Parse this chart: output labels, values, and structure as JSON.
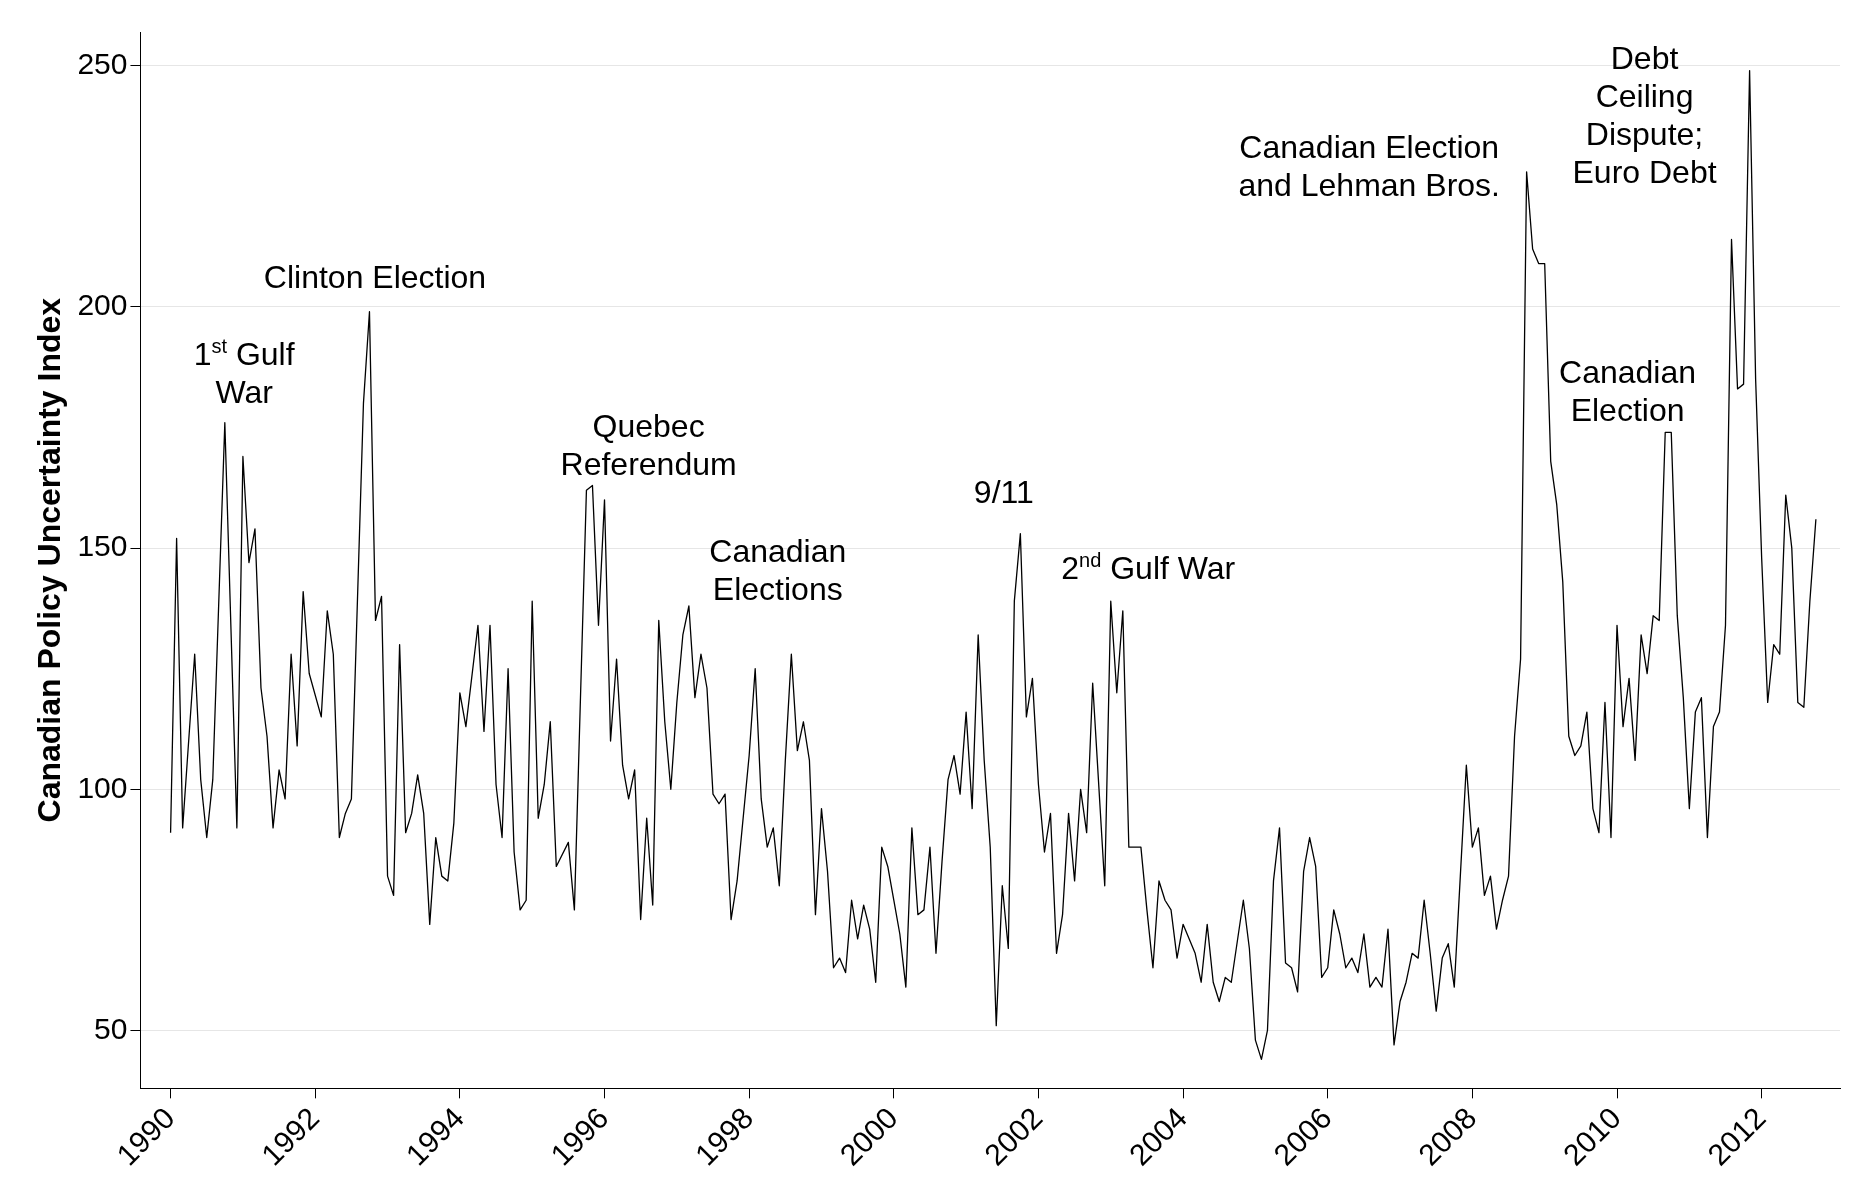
{
  "chart_data": {
    "type": "line",
    "ylabel": "Canadian Policy Uncertainty Index",
    "x": [
      "1990-01",
      "1990-02",
      "1990-03",
      "1990-05",
      "1990-06",
      "1990-07",
      "1990-08",
      "1990-10",
      "1990-12",
      "1991-01",
      "1991-02",
      "1991-03",
      "1991-04",
      "1991-05",
      "1991-06",
      "1991-07",
      "1991-08",
      "1991-09",
      "1991-10",
      "1991-11",
      "1991-12",
      "1992-02",
      "1992-03",
      "1992-04",
      "1992-05",
      "1992-06",
      "1992-07",
      "1992-09",
      "1992-10",
      "1992-11",
      "1992-12",
      "1993-01",
      "1993-02",
      "1993-03",
      "1993-04",
      "1993-05",
      "1993-06",
      "1993-07",
      "1993-08",
      "1993-09",
      "1993-10",
      "1993-11",
      "1993-12",
      "1994-01",
      "1994-02",
      "1994-04",
      "1994-05",
      "1994-06",
      "1994-07",
      "1994-08",
      "1994-09",
      "1994-10",
      "1994-11",
      "1994-12",
      "1995-01",
      "1995-02",
      "1995-03",
      "1995-04",
      "1995-05",
      "1995-07",
      "1995-08",
      "1995-10",
      "1995-11",
      "1995-12",
      "1996-01",
      "1996-02",
      "1996-03",
      "1996-04",
      "1996-05",
      "1996-06",
      "1996-07",
      "1996-08",
      "1996-09",
      "1996-10",
      "1996-11",
      "1996-12",
      "1997-01",
      "1997-02",
      "1997-03",
      "1997-04",
      "1997-05",
      "1997-06",
      "1997-07",
      "1997-08",
      "1997-09",
      "1997-10",
      "1997-11",
      "1998-01",
      "1998-02",
      "1998-03",
      "1998-04",
      "1998-05",
      "1998-06",
      "1998-07",
      "1998-08",
      "1998-09",
      "1998-10",
      "1998-11",
      "1998-12",
      "1999-01",
      "1999-02",
      "1999-03",
      "1999-04",
      "1999-05",
      "1999-06",
      "1999-07",
      "1999-08",
      "1999-09",
      "1999-10",
      "1999-11",
      "1999-12",
      "2000-01",
      "2000-02",
      "2000-03",
      "2000-04",
      "2000-05",
      "2000-06",
      "2000-07",
      "2000-08",
      "2000-09",
      "2000-10",
      "2000-11",
      "2000-12",
      "2001-01",
      "2001-02",
      "2001-03",
      "2001-04",
      "2001-05",
      "2001-06",
      "2001-07",
      "2001-08",
      "2001-09",
      "2001-10",
      "2001-11",
      "2001-12",
      "2002-01",
      "2002-02",
      "2002-03",
      "2002-04",
      "2002-05",
      "2002-06",
      "2002-07",
      "2002-08",
      "2002-09",
      "2002-10",
      "2002-12",
      "2003-01",
      "2003-02",
      "2003-03",
      "2003-04",
      "2003-06",
      "2003-07",
      "2003-08",
      "2003-09",
      "2003-10",
      "2003-11",
      "2003-12",
      "2004-01",
      "2004-02",
      "2004-03",
      "2004-04",
      "2004-05",
      "2004-06",
      "2004-07",
      "2004-08",
      "2004-09",
      "2004-11",
      "2004-12",
      "2005-01",
      "2005-02",
      "2005-03",
      "2005-04",
      "2005-05",
      "2005-06",
      "2005-07",
      "2005-08",
      "2005-09",
      "2005-10",
      "2005-11",
      "2005-12",
      "2006-01",
      "2006-02",
      "2006-03",
      "2006-04",
      "2006-05",
      "2006-06",
      "2006-07",
      "2006-08",
      "2006-09",
      "2006-10",
      "2006-11",
      "2006-12",
      "2007-01",
      "2007-02",
      "2007-03",
      "2007-04",
      "2007-05",
      "2007-06",
      "2007-07",
      "2007-08",
      "2007-09",
      "2007-10",
      "2007-11",
      "2007-12",
      "2008-01",
      "2008-02",
      "2008-03",
      "2008-04",
      "2008-05",
      "2008-06",
      "2008-07",
      "2008-08",
      "2008-09",
      "2008-10",
      "2008-11",
      "2008-12",
      "2009-01",
      "2009-02",
      "2009-03",
      "2009-04",
      "2009-05",
      "2009-06",
      "2009-07",
      "2009-08",
      "2009-09",
      "2009-10",
      "2009-11",
      "2009-12",
      "2010-01",
      "2010-02",
      "2010-03",
      "2010-04",
      "2010-05",
      "2010-06",
      "2010-07",
      "2010-08",
      "2010-09",
      "2010-10",
      "2010-11",
      "2010-12",
      "2011-01",
      "2011-02",
      "2011-03",
      "2011-04",
      "2011-05",
      "2011-06",
      "2011-07",
      "2011-08",
      "2011-09",
      "2011-10",
      "2011-11",
      "2011-12",
      "2012-01",
      "2012-02",
      "2012-03",
      "2012-04",
      "2012-05",
      "2012-06",
      "2012-07",
      "2012-08",
      "2012-09",
      "2012-10"
    ],
    "series": [
      {
        "color": "#000000",
        "values": [
          91,
          152,
          92,
          128,
          102,
          90,
          102,
          176,
          92,
          169,
          147,
          154,
          121,
          111,
          92,
          104,
          98,
          128,
          109,
          141,
          124,
          115,
          137,
          128,
          90,
          95,
          98,
          180,
          199,
          135,
          140,
          82,
          78,
          130,
          91,
          95,
          103,
          95,
          72,
          90,
          82,
          81,
          93,
          120,
          113,
          134,
          112,
          134,
          101,
          90,
          125,
          87,
          75,
          77,
          139,
          94,
          101,
          114,
          84,
          89,
          75,
          162,
          163,
          134,
          160,
          110,
          127,
          105,
          98,
          104,
          73,
          94,
          76,
          135,
          114,
          100,
          118,
          132,
          138,
          119,
          128,
          121,
          99,
          97,
          99,
          73,
          81,
          107,
          125,
          98,
          88,
          92,
          80,
          106,
          128,
          108,
          114,
          106,
          74,
          96,
          83,
          63,
          65,
          62,
          77,
          69,
          76,
          71,
          60,
          88,
          84,
          77,
          70,
          59,
          92,
          74,
          75,
          88,
          66,
          85,
          102,
          107,
          99,
          116,
          96,
          132,
          106,
          88,
          51,
          80,
          67,
          139,
          153,
          115,
          123,
          101,
          87,
          95,
          66,
          74,
          95,
          81,
          100,
          91,
          122,
          80,
          139,
          120,
          137,
          88,
          88,
          75,
          63,
          81,
          77,
          75,
          65,
          72,
          69,
          66,
          60,
          72,
          60,
          56,
          61,
          60,
          77,
          67,
          48,
          44,
          50,
          81,
          92,
          64,
          63,
          58,
          83,
          90,
          84,
          61,
          63,
          75,
          70,
          63,
          65,
          62,
          70,
          59,
          61,
          59,
          71,
          47,
          56,
          60,
          66,
          65,
          77,
          66,
          54,
          65,
          68,
          59,
          82,
          105,
          88,
          92,
          78,
          82,
          71,
          77,
          82,
          111,
          127,
          228,
          212,
          209,
          209,
          168,
          159,
          143,
          111,
          107,
          109,
          116,
          96,
          91,
          118,
          90,
          134,
          113,
          123,
          106,
          132,
          124,
          136,
          135,
          174,
          174,
          136,
          119,
          96,
          116,
          119,
          90,
          113,
          116,
          134,
          214,
          183,
          184,
          249,
          185,
          148,
          118,
          130,
          128,
          161,
          150,
          118,
          117,
          139,
          156
        ]
      }
    ],
    "xlim": [
      "1989-08",
      "2013-02"
    ],
    "xticks": [
      "1990",
      "1992",
      "1994",
      "1996",
      "1998",
      "2000",
      "2002",
      "2004",
      "2006",
      "2008",
      "2010",
      "2012"
    ],
    "ylim": [
      38,
      257
    ],
    "yticks": [
      50,
      100,
      150,
      200,
      250
    ],
    "grid": "y",
    "marker": "none",
    "line_style": "solid",
    "annotations": [
      "1$^{st}$ Gulf\nWar",
      "Clinton Election",
      "Quebec\nReferendum",
      "Canadian\nElections",
      "9/11",
      "2$^{nd}$ Gulf War",
      "Canadian Election\nand Lehman Bros.",
      "Canadian\nElection",
      "Debt\nCeiling\nDispute;\nEuro Debt"
    ]
  }
}
